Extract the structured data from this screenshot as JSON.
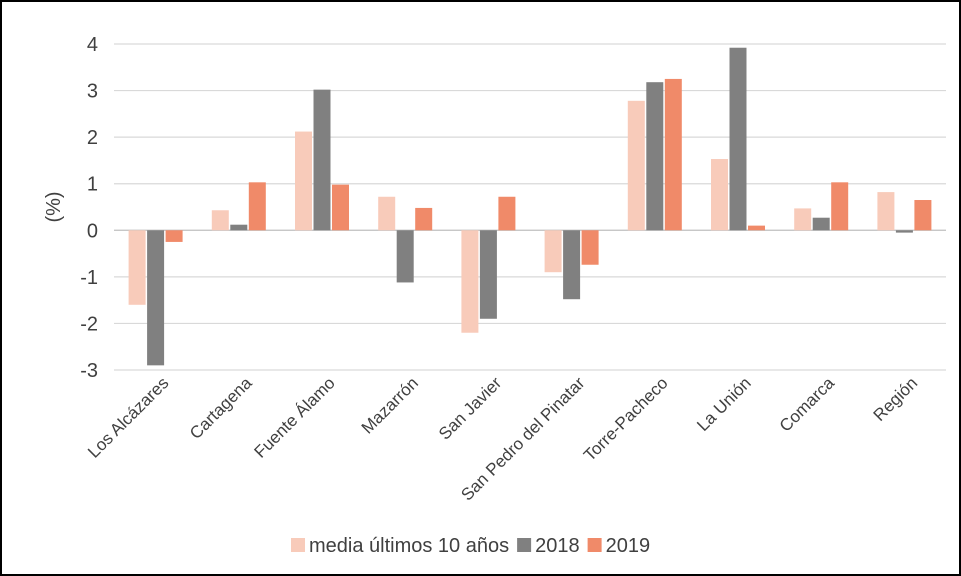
{
  "chart_data": {
    "type": "bar",
    "title": "",
    "ylabel": "(%)",
    "xlabel": "",
    "ylim": [
      -3,
      4
    ],
    "yticks": [
      4,
      3,
      2,
      1,
      0,
      -1,
      -2,
      -3
    ],
    "grid": true,
    "legend_position": "bottom",
    "categories": [
      "Los Alcázares",
      "Cartagena",
      "Fuente Álamo",
      "Mazarrón",
      "San Javier",
      "San Pedro del Pinatar",
      "Torre-Pacheco",
      "La Unión",
      "Comarca",
      "Región"
    ],
    "series": [
      {
        "name": "media últimos 10 años",
        "color": "#F8CBBA",
        "values": [
          -1.6,
          0.43,
          2.12,
          0.72,
          -2.2,
          -0.9,
          2.78,
          1.53,
          0.47,
          0.82
        ]
      },
      {
        "name": "2018",
        "color": "#808080",
        "values": [
          -2.9,
          0.12,
          3.02,
          -1.12,
          -1.9,
          -1.48,
          3.18,
          3.92,
          0.27,
          -0.05
        ]
      },
      {
        "name": "2019",
        "color": "#F08A69",
        "values": [
          -0.25,
          1.03,
          0.98,
          0.48,
          0.72,
          -0.74,
          3.25,
          0.1,
          1.03,
          0.65
        ]
      }
    ]
  }
}
